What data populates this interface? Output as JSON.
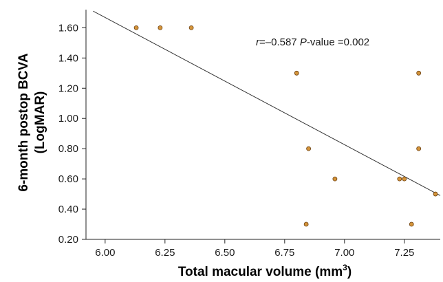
{
  "chart_data": {
    "type": "scatter",
    "xlabel": "Total macular volume (mm",
    "xlabel_sup": "3",
    "xlabel_end": ")",
    "ylabel": "6-month postop BCVA",
    "ylabel2": "(LogMAR)",
    "xlim": [
      5.92,
      7.4
    ],
    "ylim": [
      0.2,
      1.72
    ],
    "x_ticks": [
      6.0,
      6.25,
      6.5,
      6.75,
      7.0,
      7.25
    ],
    "x_tick_labels": [
      "6.00",
      "6.25",
      "6.50",
      "6.75",
      "7.00",
      "7.25"
    ],
    "y_ticks": [
      0.2,
      0.4,
      0.6,
      0.8,
      1.0,
      1.2,
      1.4,
      1.6
    ],
    "y_tick_labels": [
      "0.20",
      "0.40",
      "0.60",
      "0.80",
      "1.00",
      "1.20",
      "1.40",
      "1.60"
    ],
    "grid": false,
    "point_color": "#d4943a",
    "point_edge": "#6b3f10",
    "line_color": "#333333",
    "points": [
      {
        "x": 6.13,
        "y": 1.6
      },
      {
        "x": 6.23,
        "y": 1.6
      },
      {
        "x": 6.36,
        "y": 1.6
      },
      {
        "x": 6.8,
        "y": 1.3
      },
      {
        "x": 6.85,
        "y": 0.8
      },
      {
        "x": 6.84,
        "y": 0.3
      },
      {
        "x": 6.96,
        "y": 0.6
      },
      {
        "x": 7.23,
        "y": 0.6
      },
      {
        "x": 7.25,
        "y": 0.6
      },
      {
        "x": 7.28,
        "y": 0.3
      },
      {
        "x": 7.31,
        "y": 1.3
      },
      {
        "x": 7.31,
        "y": 0.8
      },
      {
        "x": 7.38,
        "y": 0.5
      }
    ],
    "fit_line": {
      "x": [
        5.95,
        7.4
      ],
      "y": [
        1.71,
        0.49
      ]
    },
    "annotation": {
      "r_symbol": "r",
      "r_text": "=–0.587 ",
      "p_symbol": "P",
      "p_text": "-value =0.002"
    }
  }
}
